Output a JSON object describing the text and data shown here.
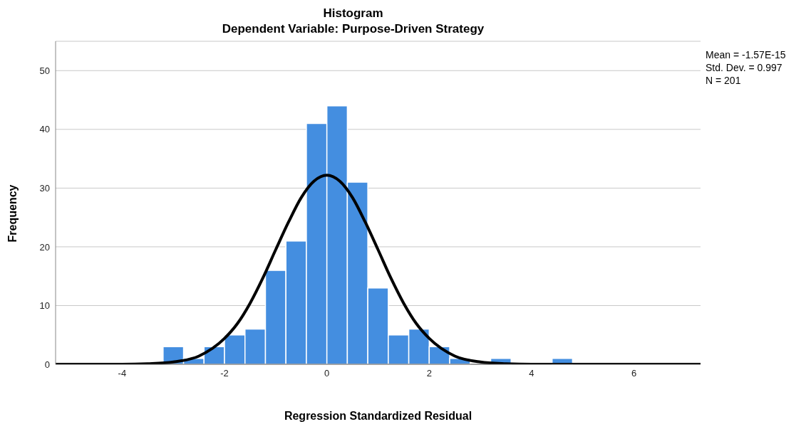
{
  "chart_data": {
    "type": "histogram",
    "title": "Histogram",
    "subtitle": "Dependent Variable: Purpose-Driven Strategy",
    "xlabel": "Regression Standardized Residual",
    "ylabel": "Frequency",
    "bins": [
      -3.2,
      -2.8,
      -2.4,
      -2.0,
      -1.6,
      -1.2,
      -0.8,
      -0.4,
      0,
      0.4,
      0.8,
      1.2,
      1.6,
      2.0,
      2.4,
      2.8,
      3.2,
      3.6,
      4.0,
      4.4,
      4.8
    ],
    "values": [
      3,
      1,
      3,
      5,
      6,
      16,
      21,
      41,
      44,
      31,
      13,
      5,
      6,
      3,
      1,
      0,
      1,
      0,
      0,
      1
    ],
    "color": "#448ee0",
    "series": [
      {
        "type": "line",
        "color": "#000000",
        "marker": "none",
        "x": [
          -5.3,
          -4.5,
          -4,
          -3.5,
          -3,
          -2.5,
          -2,
          -1.75,
          -1.5,
          -1.25,
          -1,
          -0.75,
          -0.5,
          -0.25,
          0,
          0.25,
          0.5,
          0.75,
          1,
          1.25,
          1.5,
          1.75,
          2,
          2.5,
          3,
          3.5,
          4,
          4.5,
          5.5,
          7.3
        ],
        "values": [
          0,
          0,
          0,
          0.1,
          0.4,
          1.4,
          4.4,
          6.9,
          10.4,
          14.7,
          19.5,
          24.2,
          28.4,
          31.2,
          32.2,
          31.2,
          28.4,
          24.2,
          19.5,
          14.7,
          10.4,
          6.9,
          4.4,
          1.4,
          0.4,
          0.1,
          0,
          0,
          0,
          0
        ]
      }
    ],
    "xlim": [
      -5.3,
      7.3
    ],
    "xticks": [
      -4,
      -2,
      0,
      2,
      4,
      6
    ],
    "ylim": [
      0,
      55
    ],
    "yticks": [
      0,
      10,
      20,
      30,
      40,
      50
    ],
    "grid": "y",
    "legend": false,
    "annotations": [
      "Mean = -1.57E-15",
      "Std. Dev. = 0.997",
      "N = 201"
    ]
  }
}
